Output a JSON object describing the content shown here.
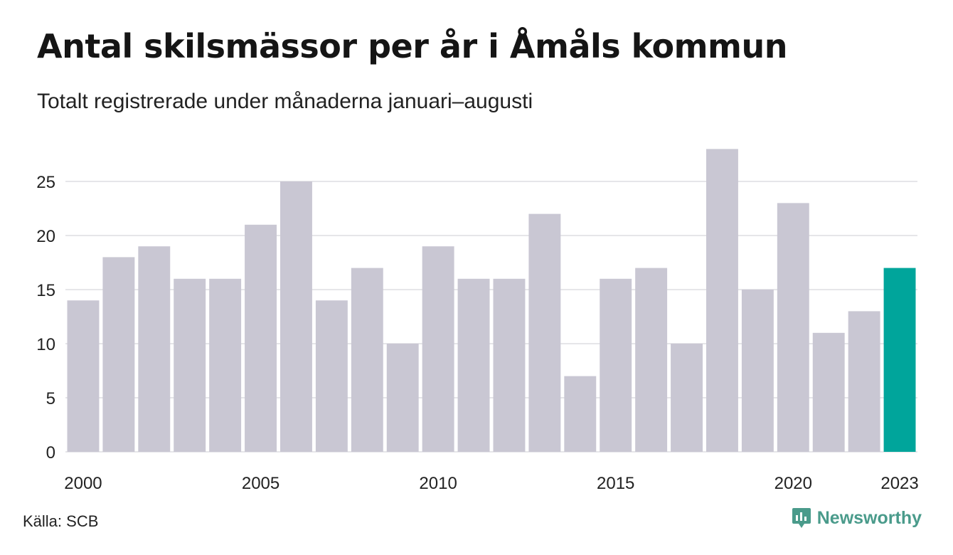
{
  "title": "Antal skilsmässor per år i Åmåls kommun",
  "subtitle": "Totalt registrerade under månaderna januari–augusti",
  "source": "Källa: SCB",
  "brand": {
    "name": "Newsworthy",
    "icon": "newsworthy-logo-icon",
    "color": "#4a9b8b"
  },
  "chart_data": {
    "type": "bar",
    "categories": [
      2000,
      2001,
      2002,
      2003,
      2004,
      2005,
      2006,
      2007,
      2008,
      2009,
      2010,
      2011,
      2012,
      2013,
      2014,
      2015,
      2016,
      2017,
      2018,
      2019,
      2020,
      2021,
      2022,
      2023
    ],
    "values": [
      14,
      18,
      19,
      16,
      16,
      21,
      25,
      14,
      17,
      10,
      19,
      16,
      16,
      22,
      7,
      16,
      17,
      10,
      28,
      15,
      23,
      11,
      13,
      17
    ],
    "x_tick_labels": [
      "2000",
      "2005",
      "2010",
      "2015",
      "2020",
      "2023"
    ],
    "y_ticks": [
      0,
      5,
      10,
      15,
      20,
      25
    ],
    "ylim": [
      0,
      28
    ],
    "grid": true,
    "bar_color": "#c9c7d3",
    "highlight_color": "#00a59b",
    "highlight_category": 2023
  }
}
